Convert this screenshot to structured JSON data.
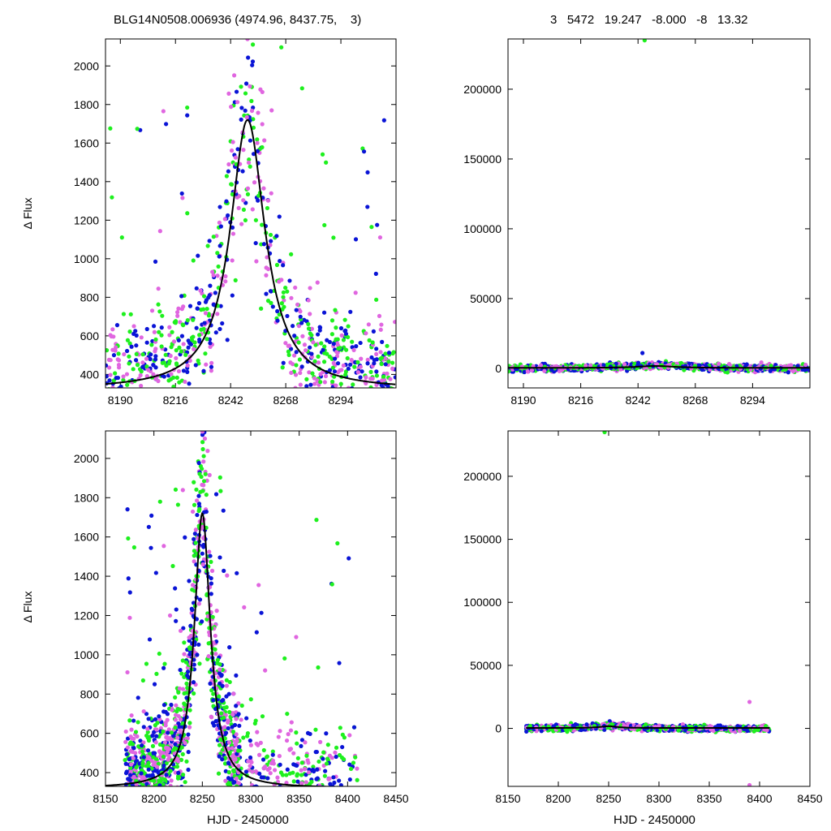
{
  "header": {
    "left": "BLG14N0508.006936 (4974.96, 8437.75,    3)",
    "right": "3   5472   19.247   -8.000   -8   13.32"
  },
  "colors": {
    "magenta": "#e066e0",
    "blue": "#0a14d6",
    "green": "#1ef01e",
    "model": "#000000"
  },
  "chart_data": [
    {
      "id": "top-left",
      "type": "scatter",
      "xlim": [
        8183,
        8320
      ],
      "ylim": [
        330,
        2140
      ],
      "xticks": [
        8190,
        8216,
        8242,
        8268,
        8294
      ],
      "yticks": [
        400,
        600,
        800,
        1000,
        1200,
        1400,
        1600,
        1800,
        2000
      ],
      "xlabel": "",
      "ylabel": "Δ Flux",
      "model": {
        "t0": 8250,
        "tE": 10,
        "peak": 1720,
        "base": 320
      }
    },
    {
      "id": "top-right",
      "type": "scatter",
      "xlim": [
        8183,
        8320
      ],
      "ylim": [
        -14000,
        236000
      ],
      "xticks": [
        8190,
        8216,
        8242,
        8268,
        8294
      ],
      "yticks": [
        0,
        50000,
        100000,
        150000,
        200000
      ],
      "xlabel": "",
      "ylabel": "",
      "outliers": [
        {
          "x": 8245,
          "y": 235000,
          "series": "green"
        },
        {
          "x": 8244,
          "y": 11000,
          "series": "blue"
        }
      ]
    },
    {
      "id": "bottom-left",
      "type": "scatter",
      "xlim": [
        8150,
        8450
      ],
      "ylim": [
        330,
        2140
      ],
      "xticks": [
        8150,
        8200,
        8250,
        8300,
        8350,
        8400,
        8450
      ],
      "yticks": [
        400,
        600,
        800,
        1000,
        1200,
        1400,
        1600,
        1800,
        2000
      ],
      "xlabel": "HJD - 2450000",
      "ylabel": "Δ Flux",
      "model": {
        "t0": 8250,
        "tE": 10,
        "peak": 1720,
        "base": 320
      }
    },
    {
      "id": "bottom-right",
      "type": "scatter",
      "xlim": [
        8150,
        8450
      ],
      "ylim": [
        -46000,
        236000
      ],
      "xticks": [
        8150,
        8200,
        8250,
        8300,
        8350,
        8400,
        8450
      ],
      "yticks": [
        0,
        50000,
        100000,
        150000,
        200000
      ],
      "xlabel": "HJD - 2450000",
      "ylabel": "",
      "outliers": [
        {
          "x": 8246,
          "y": 235000,
          "series": "green"
        },
        {
          "x": 8390,
          "y": -45000,
          "series": "magenta"
        },
        {
          "x": 8390,
          "y": 21000,
          "series": "magenta"
        }
      ]
    }
  ]
}
